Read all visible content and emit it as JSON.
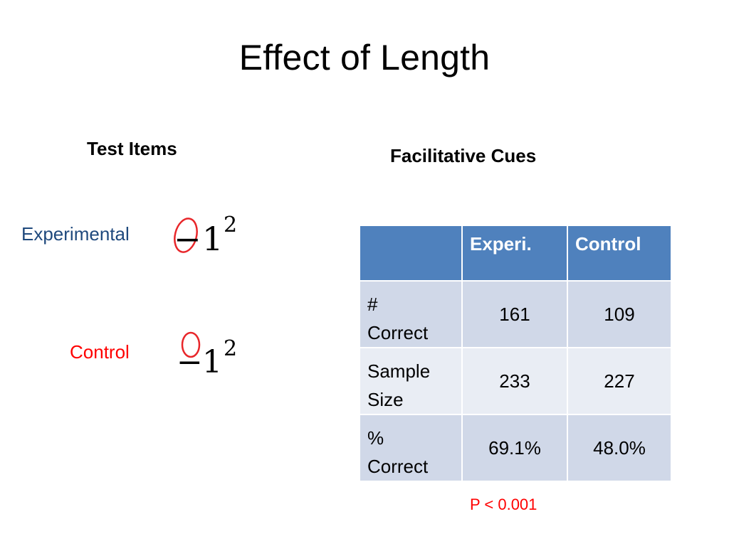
{
  "slide": {
    "title": "Effect of Length",
    "left_heading": "Test Items",
    "right_heading": "Facilitative Cues"
  },
  "test_items": {
    "experimental_label": "Experimental",
    "control_label": "Control",
    "experimental_expr": {
      "base": "1",
      "exponent": "2",
      "sign": "−"
    },
    "control_expr": {
      "base": "1",
      "exponent": "2",
      "sign": "−"
    },
    "annotation_color": "#e8262a"
  },
  "table": {
    "headers": [
      "",
      "Experi.",
      "Control"
    ],
    "rows": [
      {
        "label": "# Correct",
        "values": [
          "161",
          "109"
        ]
      },
      {
        "label": "Sample Size",
        "values": [
          "233",
          "227"
        ]
      },
      {
        "label": "% Correct",
        "values": [
          "69.1%",
          "48.0%"
        ]
      }
    ],
    "header_color": "#4f81bd",
    "band_dark": "#d0d8e8",
    "band_light": "#e9edf4"
  },
  "significance": "P < 0.001",
  "colors": {
    "experimental_label": "#1f497d",
    "control_label": "#ff0000",
    "p_value": "#ff0000"
  }
}
